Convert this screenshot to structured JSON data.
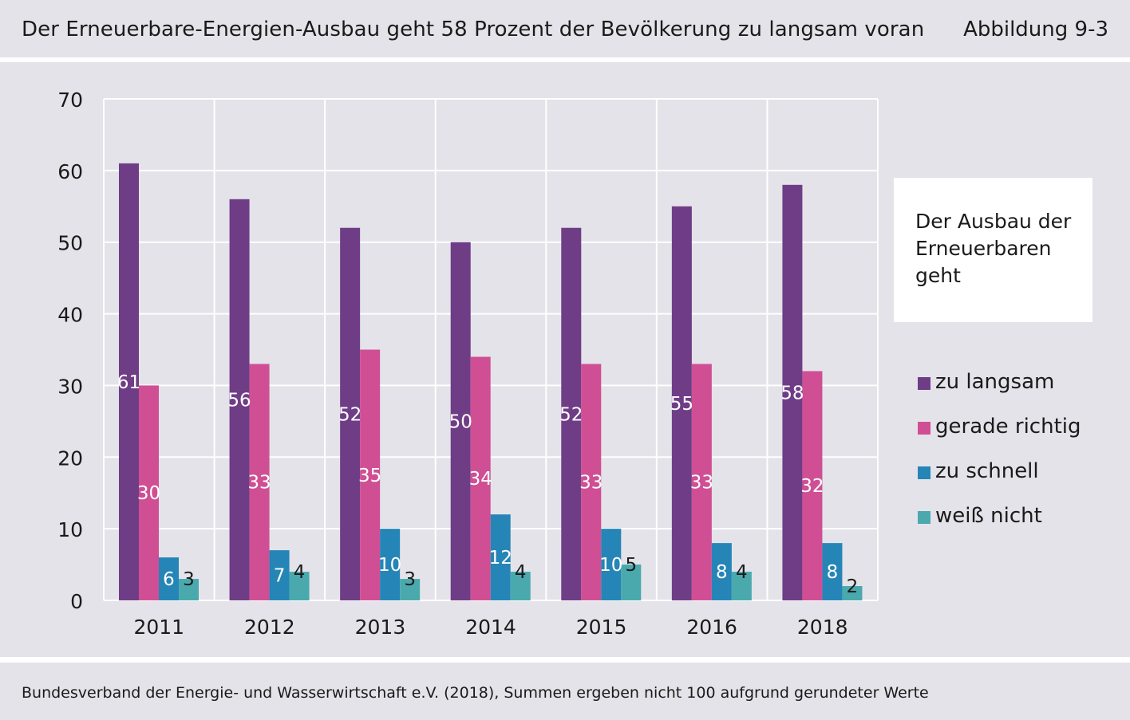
{
  "header": {
    "title": "Der Erneuerbare-Energien-Ausbau geht 58 Prozent der Bevölkerung zu langsam voran",
    "figure_label": "Abbildung 9-3"
  },
  "footer": {
    "source": "Bundesverband der Energie- und Wasserwirtschaft e.V. (2018), Summen ergeben nicht 100 aufgrund gerundeter Werte"
  },
  "legend": {
    "title": "Der Ausbau der Erneuerbaren geht",
    "items": [
      {
        "label": "zu langsam",
        "color": "#6f3d86"
      },
      {
        "label": "gerade richtig",
        "color": "#d04f94"
      },
      {
        "label": "zu schnell",
        "color": "#2585b6"
      },
      {
        "label": "weiß nicht",
        "color": "#4aa9ad"
      }
    ]
  },
  "chart_data": {
    "type": "bar",
    "title": "Der Erneuerbare-Energien-Ausbau geht 58 Prozent der Bevölkerung zu langsam voran",
    "xlabel": "",
    "ylabel": "",
    "categories": [
      "2011",
      "2012",
      "2013",
      "2014",
      "2015",
      "2016",
      "2018"
    ],
    "ylim": [
      0,
      70
    ],
    "yticks": [
      0,
      10,
      20,
      30,
      40,
      50,
      60,
      70
    ],
    "grid": true,
    "legend_position": "right",
    "series": [
      {
        "name": "zu langsam",
        "color": "#6f3d86",
        "label_color": "#ffffff",
        "values": [
          61,
          56,
          52,
          50,
          52,
          55,
          58
        ]
      },
      {
        "name": "gerade richtig",
        "color": "#d04f94",
        "label_color": "#ffffff",
        "values": [
          30,
          33,
          35,
          34,
          33,
          33,
          32
        ]
      },
      {
        "name": "zu schnell",
        "color": "#2585b6",
        "label_color": "#ffffff",
        "values": [
          6,
          7,
          10,
          12,
          10,
          8,
          8
        ]
      },
      {
        "name": "weiß nicht",
        "color": "#4aa9ad",
        "label_color": "#1a1a1a",
        "values": [
          3,
          4,
          3,
          4,
          5,
          4,
          2
        ]
      }
    ]
  }
}
